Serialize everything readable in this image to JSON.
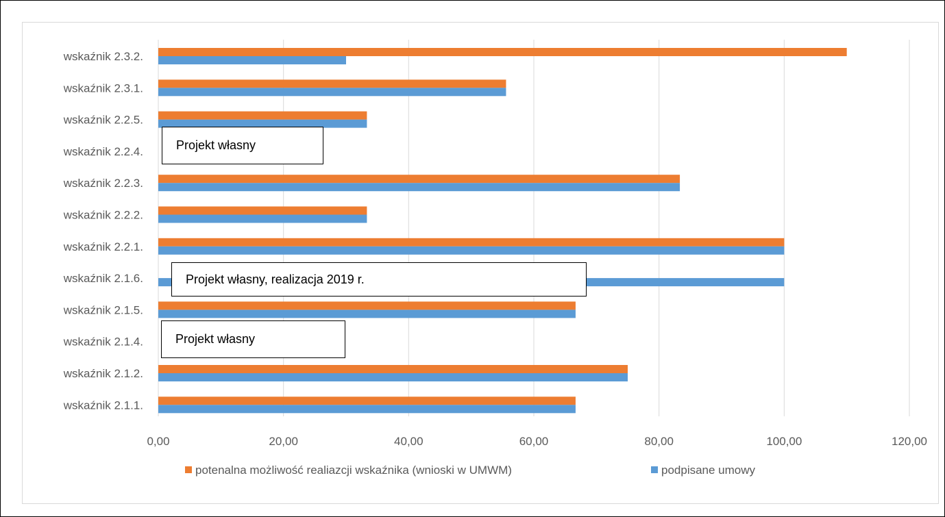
{
  "colors": {
    "potential": "#ED7D31",
    "signed": "#5B9BD5",
    "grid": "#d9d9d9",
    "text": "#595959"
  },
  "chart_data": {
    "type": "bar",
    "orientation": "horizontal",
    "categories": [
      "wskaźnik 2.1.1.",
      "wskaźnik 2.1.2.",
      "wskaźnik 2.1.4.",
      "wskaźnik 2.1.5.",
      "wskaźnik 2.1.6.",
      "wskaźnik 2.2.1.",
      "wskaźnik 2.2.2.",
      "wskaźnik 2.2.3.",
      "wskaźnik 2.2.4.",
      "wskaźnik 2.2.5.",
      "wskaźnik 2.3.1.",
      "wskaźnik 2.3.2."
    ],
    "series": [
      {
        "name": "potenalna możliwość realiazcji wskaźnika (wnioski w UMWM)",
        "color": "#ED7D31",
        "values": [
          66.67,
          75.0,
          0,
          66.67,
          0,
          100.0,
          33.33,
          83.33,
          0,
          33.33,
          55.56,
          110.0
        ]
      },
      {
        "name": "podpisane umowy",
        "color": "#5B9BD5",
        "values": [
          66.67,
          75.0,
          0,
          66.67,
          100.0,
          100.0,
          33.33,
          83.33,
          0,
          33.33,
          55.56,
          30.0
        ]
      }
    ],
    "xlim": [
      0,
      120
    ],
    "xticks": [
      "0,00",
      "20,00",
      "40,00",
      "60,00",
      "80,00",
      "100,00",
      "120,00"
    ],
    "grid": "vertical",
    "legend": "bottom",
    "annotations": [
      {
        "category": "wskaźnik 2.2.4.",
        "text": "Projekt własny"
      },
      {
        "category": "wskaźnik 2.1.6.",
        "text": "Projekt własny, realizacja 2019 r."
      },
      {
        "category": "wskaźnik 2.1.4.",
        "text": "Projekt własny"
      }
    ]
  }
}
